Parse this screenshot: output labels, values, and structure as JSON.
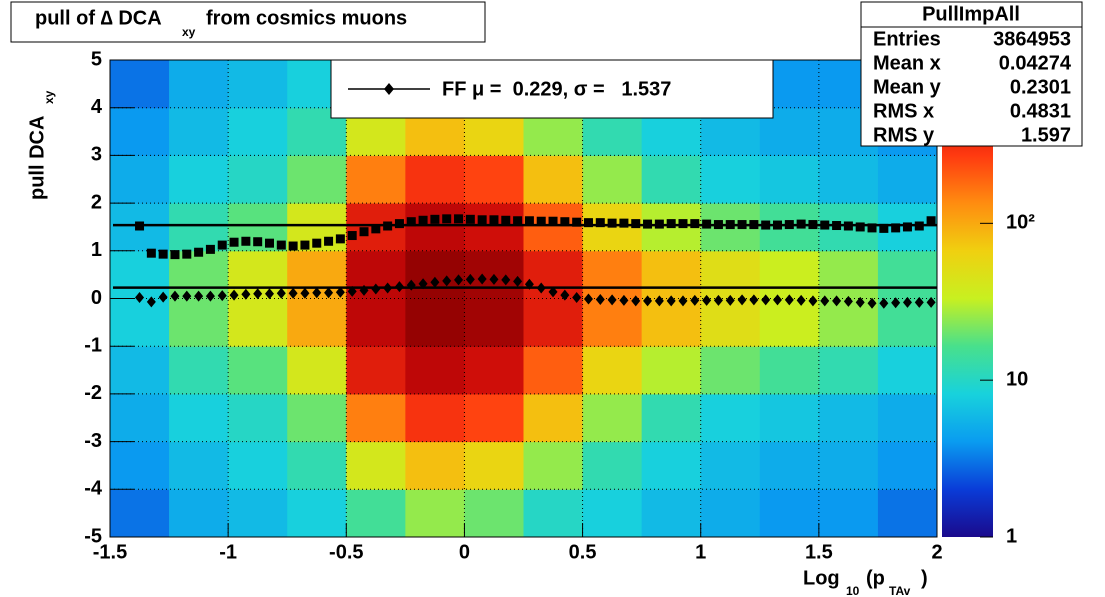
{
  "chart_data": {
    "type": "heatmap",
    "title": "pull of ∆ DCA",
    "title_subscript": "xy",
    "title_rest": "from cosmics muons",
    "x_label": "Log",
    "x_label_sub1": "10",
    "x_label_mid": "(p",
    "x_label_sub2": "TAv",
    "x_label_end": ")",
    "y_label": "pull DCA",
    "y_label_sub": "xy",
    "xlim": [
      -1.5,
      2
    ],
    "xticks": [
      -1.5,
      -1,
      -0.5,
      0,
      0.5,
      1,
      1.5,
      2
    ],
    "ylim": [
      -5,
      5
    ],
    "yticks": [
      -5,
      -4,
      -3,
      -2,
      -1,
      0,
      1,
      2,
      3,
      4,
      5
    ],
    "grid": true,
    "zlim": [
      1,
      1100
    ],
    "zlog": true,
    "zticks": [
      1,
      10,
      {
        "value": 100,
        "label": "10²"
      }
    ],
    "palette": [
      "#1a0a8c",
      "#0a3cd8",
      "#0a9cf0",
      "#18d2dc",
      "#48e08c",
      "#c8f020",
      "#f0d010",
      "#ff8c10",
      "#ff3a10",
      "#c80808",
      "#800000"
    ],
    "xbins": [
      -1.5,
      -1.25,
      -1,
      -0.75,
      -0.5,
      -0.25,
      0,
      0.25,
      0.5,
      0.75,
      1,
      1.25,
      1.5,
      1.75,
      2
    ],
    "ybins": [
      -5,
      -4,
      -3,
      -2,
      -1,
      0,
      1,
      2,
      3,
      4,
      5
    ],
    "z": [
      [
        3,
        5,
        6,
        8,
        15,
        25,
        20,
        10,
        8,
        6,
        5,
        4,
        4,
        3
      ],
      [
        4,
        6,
        8,
        12,
        40,
        80,
        60,
        25,
        12,
        8,
        6,
        5,
        5,
        4
      ],
      [
        5,
        8,
        10,
        20,
        150,
        300,
        250,
        80,
        25,
        12,
        8,
        7,
        6,
        5
      ],
      [
        6,
        12,
        18,
        40,
        400,
        600,
        500,
        200,
        60,
        30,
        20,
        15,
        12,
        8
      ],
      [
        8,
        20,
        40,
        100,
        600,
        900,
        800,
        400,
        150,
        80,
        50,
        35,
        25,
        15
      ],
      [
        8,
        20,
        40,
        100,
        600,
        900,
        800,
        400,
        150,
        80,
        50,
        35,
        25,
        15
      ],
      [
        6,
        12,
        18,
        40,
        400,
        600,
        500,
        200,
        60,
        30,
        20,
        15,
        12,
        8
      ],
      [
        5,
        8,
        10,
        20,
        150,
        300,
        250,
        80,
        25,
        12,
        8,
        7,
        6,
        5
      ],
      [
        4,
        6,
        8,
        12,
        40,
        80,
        60,
        25,
        12,
        8,
        6,
        5,
        5,
        4
      ],
      [
        3,
        5,
        6,
        8,
        15,
        25,
        20,
        10,
        8,
        6,
        5,
        4,
        4,
        3
      ]
    ],
    "x": [
      -1.375,
      -1.325,
      -1.275,
      -1.225,
      -1.175,
      -1.125,
      -1.075,
      -1.025,
      -0.975,
      -0.925,
      -0.875,
      -0.825,
      -0.775,
      -0.725,
      -0.675,
      -0.625,
      -0.575,
      -0.525,
      -0.475,
      -0.425,
      -0.375,
      -0.325,
      -0.275,
      -0.225,
      -0.175,
      -0.125,
      -0.075,
      -0.025,
      0.025,
      0.075,
      0.125,
      0.175,
      0.225,
      0.275,
      0.325,
      0.375,
      0.425,
      0.475,
      0.525,
      0.575,
      0.625,
      0.675,
      0.725,
      0.775,
      0.825,
      0.875,
      0.925,
      0.975,
      1.025,
      1.075,
      1.125,
      1.175,
      1.225,
      1.275,
      1.325,
      1.375,
      1.425,
      1.475,
      1.525,
      1.575,
      1.625,
      1.675,
      1.725,
      1.775,
      1.825,
      1.875,
      1.925,
      1.975
    ],
    "series": [
      {
        "marker": "square",
        "color": "#000000",
        "values": [
          1.52,
          0.95,
          0.93,
          0.92,
          0.93,
          0.97,
          1.03,
          1.12,
          1.18,
          1.2,
          1.19,
          1.16,
          1.12,
          1.1,
          1.12,
          1.16,
          1.2,
          1.25,
          1.32,
          1.4,
          1.46,
          1.52,
          1.57,
          1.61,
          1.64,
          1.66,
          1.67,
          1.67,
          1.66,
          1.65,
          1.65,
          1.64,
          1.63,
          1.63,
          1.62,
          1.62,
          1.61,
          1.6,
          1.59,
          1.59,
          1.58,
          1.58,
          1.57,
          1.56,
          1.56,
          1.57,
          1.57,
          1.57,
          1.56,
          1.55,
          1.55,
          1.55,
          1.55,
          1.54,
          1.54,
          1.55,
          1.56,
          1.55,
          1.54,
          1.53,
          1.52,
          1.5,
          1.48,
          1.47,
          1.48,
          1.5,
          1.52,
          1.63
        ]
      },
      {
        "marker": "diamond",
        "color": "#000000",
        "values": [
          0.02,
          -0.07,
          0.03,
          0.05,
          0.05,
          0.05,
          0.05,
          0.06,
          0.07,
          0.09,
          0.1,
          0.1,
          0.11,
          0.11,
          0.11,
          0.12,
          0.12,
          0.13,
          0.15,
          0.17,
          0.2,
          0.22,
          0.25,
          0.28,
          0.31,
          0.34,
          0.37,
          0.39,
          0.4,
          0.41,
          0.4,
          0.39,
          0.36,
          0.3,
          0.22,
          0.14,
          0.07,
          0.02,
          -0.01,
          -0.02,
          -0.03,
          -0.04,
          -0.05,
          -0.05,
          -0.05,
          -0.05,
          -0.05,
          -0.04,
          -0.04,
          -0.04,
          -0.04,
          -0.03,
          -0.03,
          -0.03,
          -0.03,
          -0.03,
          -0.04,
          -0.05,
          -0.05,
          -0.05,
          -0.06,
          -0.08,
          -0.1,
          -0.1,
          -0.09,
          -0.08,
          -0.08,
          -0.08
        ]
      }
    ],
    "fit_sigma": 1.537,
    "fit_mu": 0.229,
    "legend_text": "FF μ =  0.229, σ =   1.537",
    "stats": {
      "title": "PullImpAll",
      "rows": [
        [
          "Entries",
          3864953
        ],
        [
          "Mean x",
          0.04274
        ],
        [
          "Mean y",
          0.2301
        ],
        [
          "RMS x",
          0.4831
        ],
        [
          "RMS y",
          1.597
        ]
      ]
    }
  }
}
